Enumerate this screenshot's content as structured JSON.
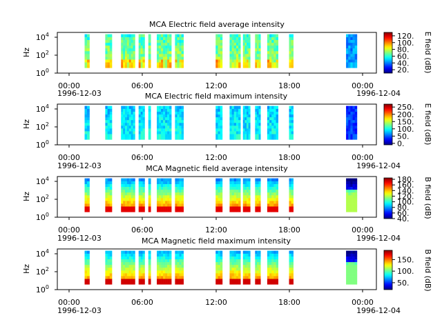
{
  "chart_data": [
    {
      "type": "heatmap",
      "title": "MCA  Electric field average intensity",
      "ylabel": "Hz",
      "colorbar_label": "E field (dB)",
      "colorbar_ticks": [
        "20.",
        "40.",
        "60.",
        "80.",
        "100.",
        "120."
      ],
      "colorbar_range": [
        10,
        130
      ],
      "yscale": "log",
      "y_ticks": [
        "10^0",
        "10^2",
        "10^4"
      ]
    },
    {
      "type": "heatmap",
      "title": "MCA  Electric field maximum intensity",
      "ylabel": "Hz",
      "colorbar_label": "E field (dB)",
      "colorbar_ticks": [
        "0.",
        "50.",
        "100.",
        "150.",
        "200.",
        "250."
      ],
      "colorbar_range": [
        -10,
        270
      ],
      "yscale": "log",
      "y_ticks": [
        "10^0",
        "10^2",
        "10^4"
      ]
    },
    {
      "type": "heatmap",
      "title": "MCA  Magnetic field average intensity",
      "ylabel": "Hz",
      "colorbar_label": "B field (dB)",
      "colorbar_ticks": [
        "40.",
        "60.",
        "80.",
        "100.",
        "120.",
        "140.",
        "160.",
        "180."
      ],
      "colorbar_range": [
        40,
        185
      ],
      "yscale": "log",
      "y_ticks": [
        "10^0",
        "10^2",
        "10^4"
      ]
    },
    {
      "type": "heatmap",
      "title": "MCA  Magnetic field maximum intensity",
      "ylabel": "Hz",
      "colorbar_label": "B field (dB)",
      "colorbar_ticks": [
        "50.",
        "100.",
        "150."
      ],
      "colorbar_range": [
        20,
        190
      ],
      "yscale": "log",
      "y_ticks": [
        "10^0",
        "10^2",
        "10^4"
      ]
    }
  ],
  "x_axis": {
    "tick_labels": [
      "00:00",
      "06:00",
      "12:00",
      "18:00",
      "00:00"
    ],
    "start_date": "1996-12-03",
    "end_date": "1996-12-04",
    "range_hours": [
      -1.3,
      25.0
    ]
  },
  "data_segments_hours": [
    [
      0.95,
      1.35
    ],
    [
      2.65,
      3.2
    ],
    [
      3.95,
      5.1
    ],
    [
      5.4,
      5.9
    ],
    [
      6.2,
      6.4
    ],
    [
      6.9,
      8.1
    ],
    [
      8.4,
      9.1
    ],
    [
      11.75,
      12.3
    ],
    [
      12.9,
      13.8
    ],
    [
      14.0,
      14.6
    ],
    [
      15.0,
      15.45
    ],
    [
      16.0,
      16.9
    ],
    [
      17.8,
      18.15
    ],
    [
      22.5,
      23.4
    ]
  ],
  "data_freq_range_log10": [
    0.6,
    4.4
  ]
}
